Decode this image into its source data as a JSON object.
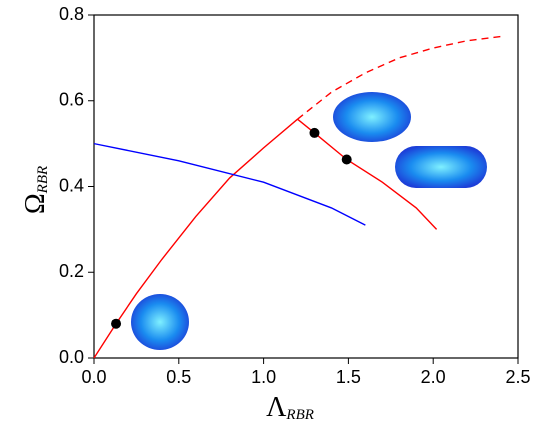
{
  "chart_data": {
    "type": "line",
    "xlabel": {
      "symbol": "Λ",
      "subscript": "RBR"
    },
    "ylabel": {
      "symbol": "Ω",
      "subscript": "RBR"
    },
    "xlim": [
      0,
      2.5
    ],
    "ylim": [
      0,
      0.8
    ],
    "xticks": [
      {
        "value": 0,
        "label": "0.0"
      },
      0.5,
      {
        "value": 1,
        "label": "1.0"
      },
      1.5,
      {
        "value": 2,
        "label": "2.0"
      },
      2.5
    ],
    "yticks": [
      {
        "value": 0,
        "label": "0.0"
      },
      0.2,
      0.4,
      0.6,
      0.8
    ],
    "series": [
      {
        "color": "#ff0000",
        "style": "solid",
        "x": [
          0,
          0.13,
          0.25,
          0.4,
          0.6,
          0.8,
          1.0,
          1.2
        ],
        "values": [
          0,
          0.08,
          0.15,
          0.23,
          0.33,
          0.42,
          0.49,
          0.557
        ]
      },
      {
        "color": "#ff0000",
        "style": "solid",
        "x": [
          1.2,
          1.3,
          1.49,
          1.7,
          1.9,
          2.02
        ],
        "values": [
          0.557,
          0.525,
          0.463,
          0.41,
          0.35,
          0.3
        ]
      },
      {
        "color": "#ff0000",
        "style": "dashed",
        "x": [
          1.2,
          1.4,
          1.6,
          1.8,
          2.0,
          2.2,
          2.4
        ],
        "values": [
          0.557,
          0.62,
          0.665,
          0.7,
          0.723,
          0.74,
          0.75
        ]
      },
      {
        "color": "#0000ff",
        "style": "solid",
        "x": [
          0,
          0.5,
          1.0,
          1.4,
          1.6
        ],
        "values": [
          0.5,
          0.46,
          0.41,
          0.35,
          0.31
        ]
      },
      {
        "color": "#000000",
        "style": "points",
        "x": [
          0.13,
          1.3,
          1.49
        ],
        "values": [
          0.08,
          0.525,
          0.463
        ]
      }
    ]
  }
}
